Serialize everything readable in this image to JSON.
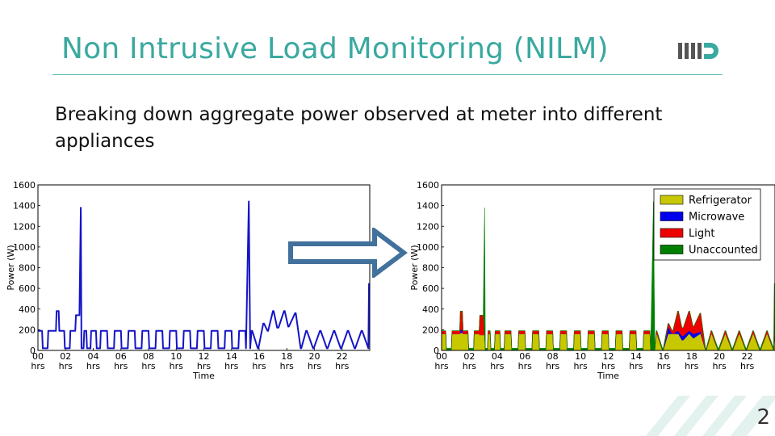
{
  "slide": {
    "title": "Non Intrusive Load Monitoring (NILM)",
    "subtitle_lines": [
      "Breaking down aggregate power observed at meter into different",
      "appliances"
    ],
    "page_number": "2",
    "accent_color": "#3aa9a0",
    "logo_icon": "iiitd-logo-icon",
    "arrow_icon": "right-arrow-icon"
  },
  "chart_data": [
    {
      "type": "line",
      "title": "",
      "xlabel": "Time",
      "ylabel": "Power (W)",
      "xlim": [
        0,
        24
      ],
      "ylim": [
        0,
        1600
      ],
      "y_ticks": [
        "0",
        "200",
        "400",
        "600",
        "800",
        "1000",
        "1200",
        "1400",
        "1600"
      ],
      "x_ticks": [
        "00\nhrs",
        "02\nhrs",
        "04\nhrs",
        "06\nhrs",
        "08\nhrs",
        "10\nhrs",
        "12\nhrs",
        "14\nhrs",
        "16\nhrs",
        "18\nhrs",
        "20\nhrs",
        "22\nhrs"
      ],
      "series": [
        {
          "color": "#1414c8",
          "x": [
            0,
            0.3,
            0.35,
            0.7,
            0.75,
            1.3,
            1.35,
            1.5,
            1.55,
            1.9,
            1.95,
            2.3,
            2.35,
            2.7,
            2.75,
            3.0,
            3.1,
            3.15,
            3.3,
            3.35,
            3.5,
            3.55,
            3.8,
            3.85,
            4.2,
            4.25,
            4.5,
            4.55,
            5.0,
            5.05,
            5.5,
            5.55,
            6.0,
            6.05,
            6.5,
            6.55,
            7.0,
            7.05,
            7.5,
            7.55,
            8.0,
            8.05,
            8.5,
            8.55,
            9.0,
            9.05,
            9.5,
            9.55,
            10.0,
            10.05,
            10.5,
            10.55,
            11.0,
            11.05,
            11.5,
            11.55,
            12.0,
            12.05,
            12.5,
            12.55,
            13.0,
            13.05,
            13.5,
            13.55,
            14.0,
            14.05,
            14.5,
            14.55,
            15.0,
            15.05,
            15.25,
            15.35,
            15.45,
            15.5,
            15.9,
            15.95,
            16.3,
            16.35,
            16.6,
            16.65,
            17.0,
            17.05,
            17.3,
            17.4,
            17.8,
            17.85,
            18.1,
            18.15,
            18.6,
            18.65,
            19.0,
            19.05,
            19.4,
            19.45,
            19.9,
            19.95,
            20.4,
            20.45,
            20.9,
            20.95,
            21.4,
            21.45,
            21.9,
            21.95,
            22.4,
            22.45,
            22.9,
            22.95,
            23.4,
            23.45,
            23.9,
            23.95
          ],
          "y": [
            190,
            190,
            20,
            20,
            190,
            190,
            380,
            380,
            190,
            190,
            20,
            20,
            190,
            190,
            340,
            340,
            1380,
            20,
            20,
            190,
            190,
            20,
            20,
            190,
            190,
            20,
            20,
            190,
            190,
            20,
            20,
            190,
            190,
            20,
            20,
            190,
            190,
            20,
            20,
            190,
            190,
            20,
            20,
            190,
            190,
            20,
            20,
            190,
            190,
            20,
            20,
            190,
            190,
            20,
            20,
            190,
            190,
            20,
            20,
            190,
            190,
            20,
            20,
            190,
            190,
            20,
            20,
            190,
            190,
            20,
            1440,
            20,
            190,
            190,
            20,
            20,
            260,
            260,
            190,
            190,
            380,
            380,
            220,
            220,
            380,
            380,
            230,
            230,
            360,
            360,
            20,
            20,
            190,
            190,
            20,
            20,
            190,
            190,
            20,
            20,
            190,
            190,
            20,
            20,
            190,
            190,
            20,
            20,
            190,
            190,
            20,
            650
          ]
        }
      ]
    },
    {
      "type": "area",
      "title": "",
      "xlabel": "Time",
      "ylabel": "Power (W)",
      "xlim": [
        0,
        24
      ],
      "ylim": [
        0,
        1600
      ],
      "y_ticks": [
        "0",
        "200",
        "400",
        "600",
        "800",
        "1000",
        "1200",
        "1400",
        "1600"
      ],
      "x_ticks": [
        "00\nhrs",
        "02\nhrs",
        "04\nhrs",
        "06\nhrs",
        "08\nhrs",
        "10\nhrs",
        "12\nhrs",
        "14\nhrs",
        "16\nhrs",
        "18\nhrs",
        "20\nhrs",
        "22\nhrs"
      ],
      "legend_position": "top-right",
      "legend": [
        {
          "label": "Refrigerator",
          "color": "#c8c800"
        },
        {
          "label": "Microwave",
          "color": "#0000ee"
        },
        {
          "label": "Light",
          "color": "#ee0000"
        },
        {
          "label": "Unaccounted",
          "color": "#008000"
        }
      ],
      "x": [
        0,
        0.3,
        0.35,
        0.7,
        0.75,
        1.3,
        1.35,
        1.5,
        1.55,
        1.9,
        1.95,
        2.3,
        2.35,
        2.7,
        2.75,
        3.0,
        3.1,
        3.15,
        3.3,
        3.35,
        3.5,
        3.55,
        3.8,
        3.85,
        4.2,
        4.25,
        4.5,
        4.55,
        5.0,
        5.05,
        5.5,
        5.55,
        6.0,
        6.05,
        6.5,
        6.55,
        7.0,
        7.05,
        7.5,
        7.55,
        8.0,
        8.05,
        8.5,
        8.55,
        9.0,
        9.05,
        9.5,
        9.55,
        10.0,
        10.05,
        10.5,
        10.55,
        11.0,
        11.05,
        11.5,
        11.55,
        12.0,
        12.05,
        12.5,
        12.55,
        13.0,
        13.05,
        13.5,
        13.55,
        14.0,
        14.05,
        14.5,
        14.55,
        15.0,
        15.05,
        15.25,
        15.35,
        15.45,
        15.5,
        15.9,
        15.95,
        16.3,
        16.35,
        16.6,
        16.65,
        17.0,
        17.05,
        17.3,
        17.4,
        17.8,
        17.85,
        18.1,
        18.15,
        18.6,
        18.65,
        19.0,
        19.05,
        19.4,
        19.45,
        19.9,
        19.95,
        20.4,
        20.45,
        20.9,
        20.95,
        21.4,
        21.45,
        21.9,
        21.95,
        22.4,
        22.45,
        22.9,
        22.95,
        23.4,
        23.45,
        23.9,
        23.95
      ],
      "stacks": {
        "Refrigerator": [
          160,
          160,
          0,
          0,
          160,
          160,
          170,
          170,
          160,
          160,
          0,
          0,
          160,
          160,
          150,
          150,
          150,
          0,
          0,
          160,
          160,
          0,
          0,
          160,
          160,
          0,
          0,
          160,
          160,
          0,
          0,
          160,
          160,
          0,
          0,
          160,
          160,
          0,
          0,
          160,
          160,
          0,
          0,
          160,
          160,
          0,
          0,
          160,
          160,
          0,
          0,
          160,
          160,
          0,
          0,
          160,
          160,
          0,
          0,
          160,
          160,
          0,
          0,
          160,
          160,
          0,
          0,
          160,
          160,
          0,
          0,
          0,
          160,
          160,
          0,
          0,
          160,
          160,
          160,
          160,
          160,
          160,
          100,
          100,
          160,
          160,
          120,
          120,
          160,
          160,
          0,
          0,
          160,
          160,
          0,
          0,
          160,
          160,
          0,
          0,
          160,
          160,
          0,
          0,
          160,
          160,
          0,
          0,
          160,
          160,
          0,
          120
        ],
        "Microwave": [
          0,
          0,
          0,
          0,
          0,
          0,
          30,
          30,
          0,
          0,
          0,
          0,
          0,
          0,
          0,
          0,
          0,
          0,
          0,
          0,
          0,
          0,
          0,
          0,
          0,
          0,
          0,
          0,
          0,
          0,
          0,
          0,
          0,
          0,
          0,
          0,
          0,
          0,
          0,
          0,
          0,
          0,
          0,
          0,
          0,
          0,
          0,
          0,
          0,
          0,
          0,
          0,
          0,
          0,
          0,
          0,
          0,
          0,
          0,
          0,
          0,
          0,
          0,
          0,
          0,
          0,
          0,
          0,
          0,
          0,
          0,
          0,
          0,
          0,
          0,
          0,
          60,
          60,
          0,
          0,
          30,
          30,
          40,
          40,
          30,
          30,
          40,
          40,
          20,
          20,
          0,
          0,
          0,
          0,
          0,
          0,
          0,
          0,
          0,
          0,
          0,
          0,
          0,
          0,
          0,
          0,
          0,
          0,
          0,
          0,
          0,
          0
        ],
        "Light": [
          30,
          30,
          0,
          0,
          30,
          30,
          180,
          180,
          30,
          30,
          0,
          0,
          30,
          30,
          190,
          190,
          0,
          0,
          0,
          30,
          30,
          0,
          0,
          30,
          30,
          0,
          0,
          30,
          30,
          0,
          0,
          30,
          30,
          0,
          0,
          30,
          30,
          0,
          0,
          30,
          30,
          0,
          0,
          30,
          30,
          0,
          0,
          30,
          30,
          0,
          0,
          30,
          30,
          0,
          0,
          30,
          30,
          0,
          0,
          30,
          30,
          0,
          0,
          30,
          30,
          0,
          0,
          30,
          30,
          0,
          0,
          0,
          30,
          30,
          0,
          0,
          40,
          40,
          30,
          30,
          190,
          190,
          80,
          80,
          190,
          190,
          70,
          70,
          180,
          180,
          0,
          0,
          30,
          30,
          0,
          0,
          30,
          30,
          0,
          0,
          30,
          30,
          0,
          0,
          30,
          30,
          0,
          0,
          30,
          30,
          0,
          40
        ],
        "Unaccounted": [
          0,
          0,
          20,
          20,
          0,
          0,
          0,
          0,
          0,
          0,
          20,
          20,
          0,
          0,
          0,
          0,
          1230,
          20,
          20,
          0,
          0,
          20,
          20,
          0,
          0,
          20,
          20,
          0,
          0,
          20,
          20,
          0,
          0,
          20,
          20,
          0,
          0,
          20,
          20,
          0,
          0,
          20,
          20,
          0,
          0,
          20,
          20,
          0,
          0,
          20,
          20,
          0,
          0,
          20,
          20,
          0,
          0,
          20,
          20,
          0,
          0,
          20,
          20,
          0,
          0,
          20,
          20,
          0,
          0,
          20,
          1440,
          20,
          0,
          0,
          20,
          20,
          0,
          0,
          0,
          0,
          0,
          0,
          0,
          0,
          0,
          0,
          0,
          0,
          0,
          0,
          20,
          20,
          0,
          0,
          20,
          20,
          0,
          0,
          20,
          20,
          0,
          0,
          20,
          20,
          0,
          0,
          20,
          20,
          0,
          0,
          20,
          490
        ]
      }
    }
  ]
}
